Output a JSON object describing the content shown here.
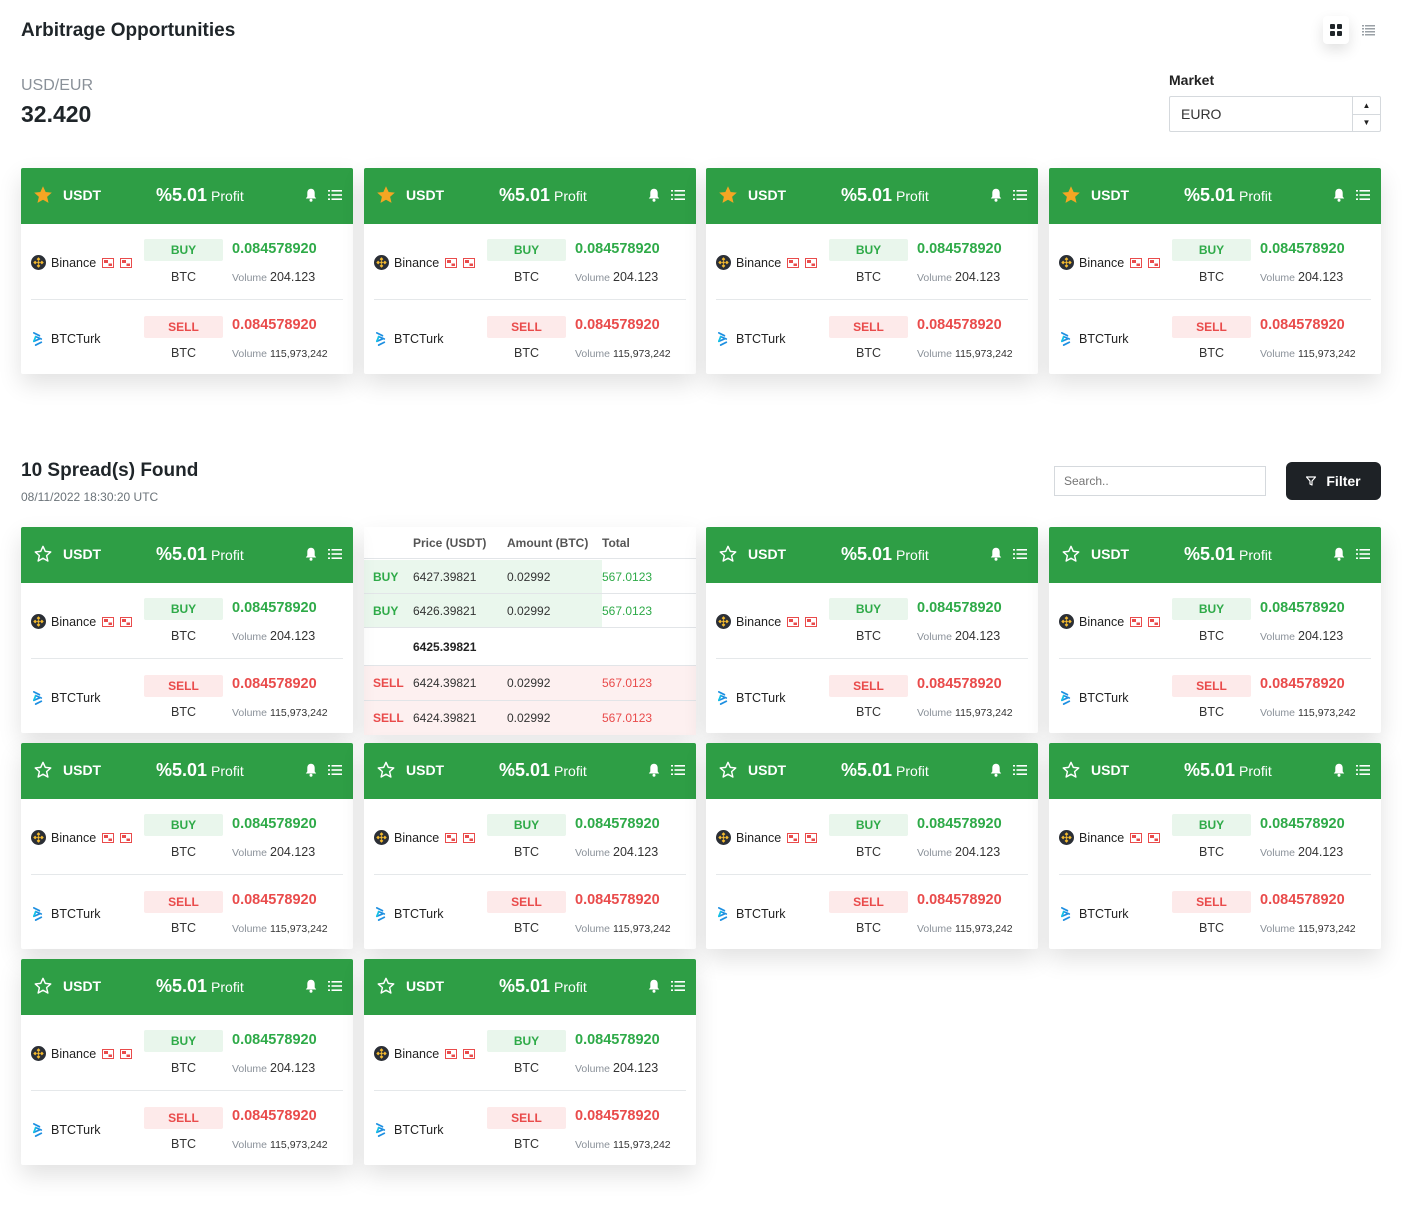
{
  "header": {
    "title": "Arbitrage Opportunities"
  },
  "rate": {
    "pair": "USD/EUR",
    "value": "32.420"
  },
  "market": {
    "label": "Market",
    "value": "EURO"
  },
  "spreads": {
    "title": "10 Spread(s) Found",
    "date": "08/11/2022 18:30:20 UTC",
    "search_placeholder": "Search..",
    "filter_label": "Filter"
  },
  "card": {
    "coin": "USDT",
    "profit_value": "%5.01",
    "profit_label": "Profit",
    "buy": {
      "exchange": "Binance",
      "side": "BUY",
      "price": "0.084578920",
      "pair": "BTC",
      "volume_label": "Volume",
      "volume": "204.123"
    },
    "sell": {
      "exchange": "BTCTurk",
      "side": "SELL",
      "price": "0.084578920",
      "pair": "BTC",
      "volume_label": "Volume",
      "volume": "115,973,242"
    }
  },
  "orderbook": {
    "headers": {
      "price": "Price (USDT)",
      "amount": "Amount (BTC)",
      "total": "Total"
    },
    "rows": [
      {
        "side": "BUY",
        "price": "6427.39821",
        "amount": "0.02992",
        "total": "567.0123"
      },
      {
        "side": "BUY",
        "price": "6426.39821",
        "amount": "0.02992",
        "total": "567.0123"
      },
      {
        "side": "SELL",
        "price": "6424.39821",
        "amount": "0.02992",
        "total": "567.0123"
      },
      {
        "side": "SELL",
        "price": "6424.39821",
        "amount": "0.02992",
        "total": "567.0123"
      }
    ],
    "mid_price": "6425.39821"
  },
  "colors": {
    "accent": "#2e9e45",
    "buy": "#2eaa48",
    "sell": "#e94b4b",
    "star": "#f5a623"
  }
}
